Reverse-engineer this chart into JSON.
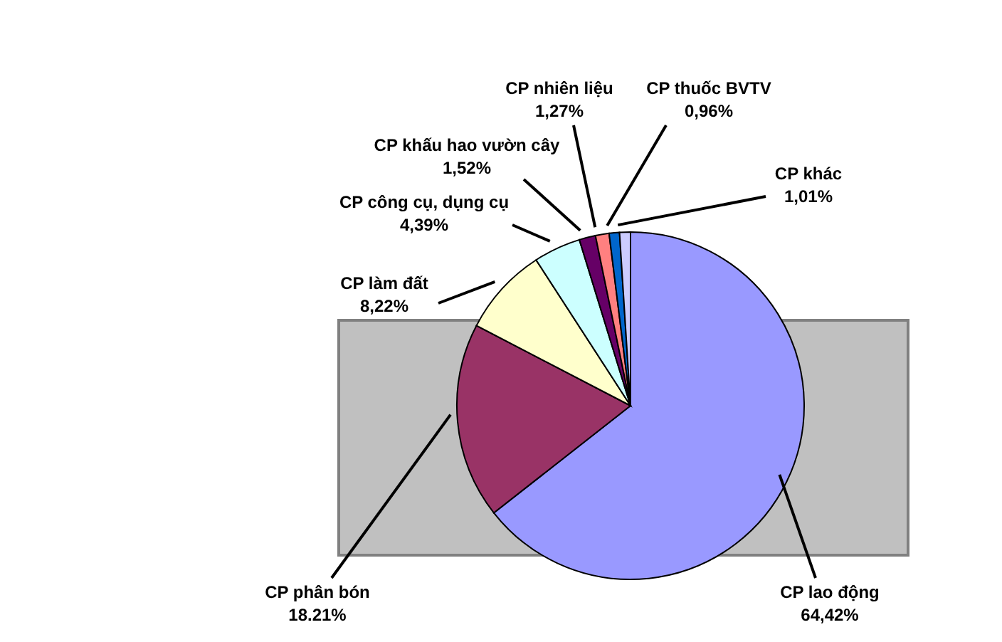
{
  "chart_data": {
    "type": "pie",
    "categories": [
      "CP lao động",
      "CP phân bón",
      "CP làm đất",
      "CP công cụ, dụng cụ",
      "CP khấu hao vườn cây",
      "CP nhiên liệu",
      "CP thuốc BVTV",
      "CP khác"
    ],
    "values": [
      64.42,
      18.21,
      8.22,
      4.39,
      1.52,
      1.27,
      0.96,
      1.01
    ],
    "value_labels": [
      "64,42%",
      "18.21%",
      "8,22%",
      "4,39%",
      "1,52%",
      "1,27%",
      "0,96%",
      "1,01%"
    ],
    "colors": [
      "#9999ff",
      "#993366",
      "#ffffcc",
      "#ccffff",
      "#660066",
      "#ff8080",
      "#0066cc",
      "#ccccff"
    ],
    "legend": false
  }
}
